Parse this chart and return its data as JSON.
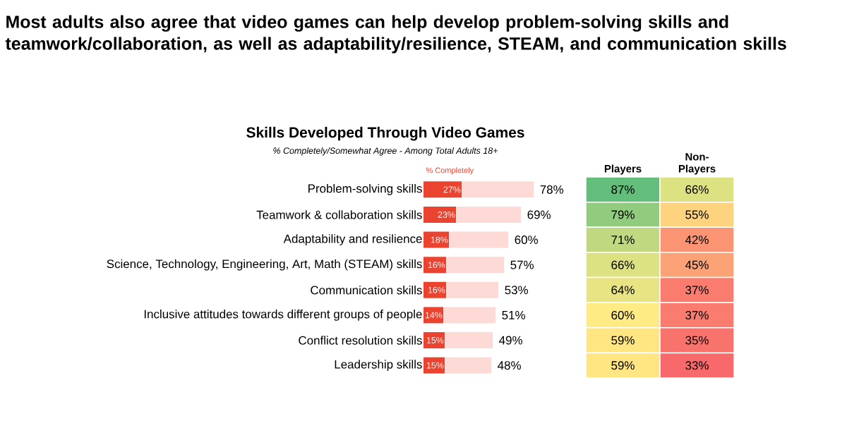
{
  "chart_data": [
    {
      "type": "bar",
      "orientation": "horizontal",
      "title": "Skills Developed Through Video Games",
      "subtitle": "% Completely/Somewhat Agree - Among Total Adults 18+",
      "annotations": [
        "Most adults also agree that video games can help develop problem-solving skills and teamwork/collaboration, as well as adaptability/resilience, STEAM, and communication skills"
      ],
      "categories": [
        "Problem-solving skills",
        "Teamwork & collaboration skills",
        "Adaptability and resilience",
        "Science, Technology, Engineering, Art, Math (STEAM) skills",
        "Communication skills",
        "Inclusive attitudes towards different groups of people",
        "Conflict resolution skills",
        "Leadership skills"
      ],
      "tick_labels": "y",
      "stacked": true,
      "totals": [
        "78%",
        "69%",
        "60%",
        "57%",
        "53%",
        "51%",
        "49%",
        "48%"
      ],
      "series": [
        {
          "name": "% Completely",
          "color": "#ea4330",
          "values": [
            27,
            23,
            18,
            16,
            16,
            14,
            15,
            15
          ],
          "value_labels": [
            "27%",
            "23%",
            "18%",
            "16%",
            "16%",
            "14%",
            "15%",
            "15%"
          ]
        },
        {
          "color": "#fddad5",
          "values": [
            51,
            46,
            42,
            41,
            37,
            37,
            34,
            33
          ]
        }
      ]
    },
    {
      "type": "heatmap",
      "categories": [
        "Players",
        "Non-Players"
      ],
      "y_categories": [
        null,
        null,
        null,
        null,
        null,
        null,
        null,
        null
      ],
      "tick_labels": "x",
      "cells": [
        [
          87,
          66
        ],
        [
          79,
          55
        ],
        [
          71,
          42
        ],
        [
          66,
          45
        ],
        [
          64,
          37
        ],
        [
          60,
          37
        ],
        [
          59,
          35
        ],
        [
          59,
          33
        ]
      ],
      "cell_labels": [
        [
          "87%",
          "66%"
        ],
        [
          "79%",
          "55%"
        ],
        [
          "71%",
          "42%"
        ],
        [
          "66%",
          "45%"
        ],
        [
          "64%",
          "37%"
        ],
        [
          "60%",
          "37%"
        ],
        [
          "59%",
          "35%"
        ],
        [
          "59%",
          "33%"
        ]
      ]
    }
  ]
}
